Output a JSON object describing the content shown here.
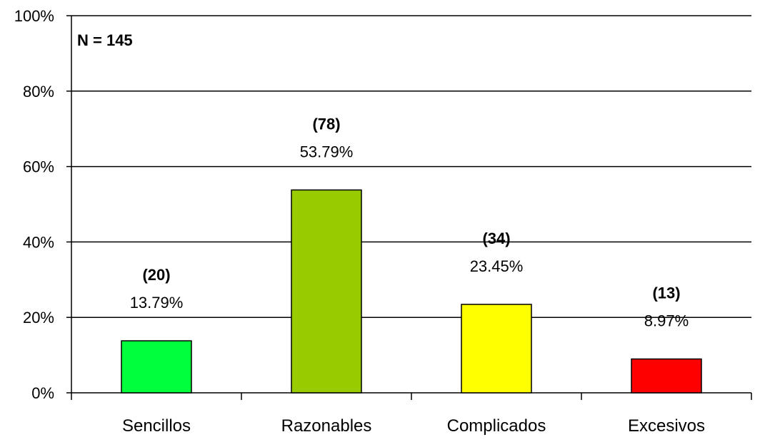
{
  "chart_data": {
    "type": "bar",
    "annotation": "N = 145",
    "categories": [
      "Sencillos",
      "Razonables",
      "Complicados",
      "Excesivos"
    ],
    "values": [
      13.79,
      53.79,
      23.45,
      8.97
    ],
    "counts": [
      "(20)",
      "(78)",
      "(34)",
      "(13)"
    ],
    "value_labels": [
      "13.79%",
      "53.79%",
      "23.45%",
      "8.97%"
    ],
    "colors": [
      "#00ff3c",
      "#99cc00",
      "#ffff00",
      "#ff0000"
    ],
    "ylim": [
      0,
      100
    ],
    "yticks": [
      0,
      20,
      40,
      60,
      80,
      100
    ],
    "ytick_labels": [
      "0%",
      "20%",
      "40%",
      "60%",
      "80%",
      "100%"
    ],
    "grid": true,
    "legend": "none"
  }
}
